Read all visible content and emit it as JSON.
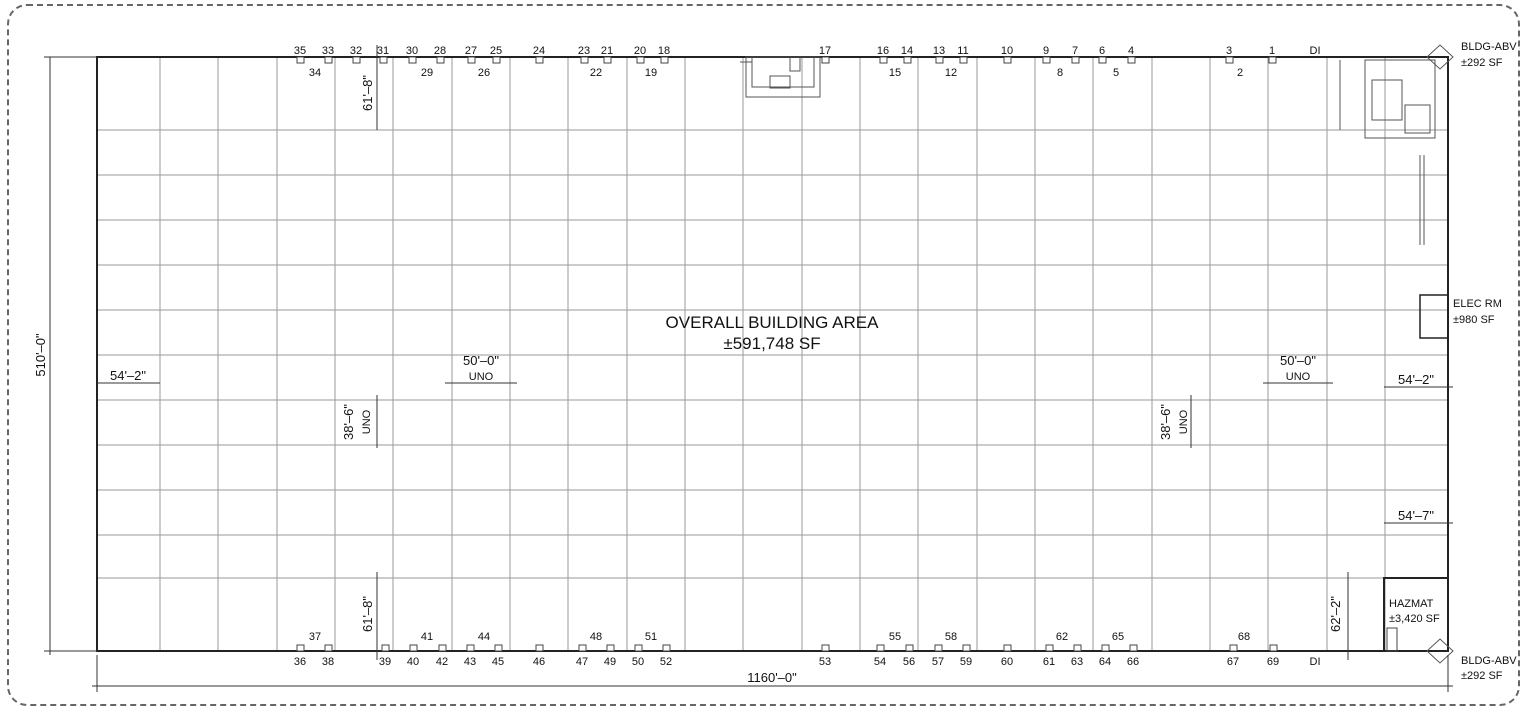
{
  "plan": {
    "area_label": "OVERALL BUILDING AREA",
    "area_value": "±591,748 SF",
    "overall_width": "1160'–0\"",
    "overall_height": "510'–0\"",
    "bays": {
      "left": "54'–2\"",
      "typ": "50'–0\"",
      "typ_right": "50'–0\"",
      "uno": "UNO",
      "right_a": "54'–2\"",
      "right_b": "54'–7\""
    },
    "rows": {
      "typ_left": "38'–6\"",
      "typ_right": "38'–6\"",
      "uno": "UNO",
      "top": "61'–8\"",
      "bottom": "61'–8\"",
      "bottom_right": "62'–2\""
    },
    "notes": {
      "bldg_abv_top": "BLDG-ABV",
      "bldg_abv_top_sf": "±292 SF",
      "bldg_abv_bottom": "BLDG-ABV",
      "bldg_abv_bottom_sf": "±292 SF",
      "elec_rm": "ELEC RM",
      "elec_rm_sf": "±980 SF",
      "hazmat": "HAZMAT",
      "hazmat_sf": "±3,420 SF",
      "di_top": "DI",
      "di_bottom": "DI"
    },
    "docks_top_upper": [
      "35",
      "33",
      "32",
      "31",
      "30",
      "28",
      "27",
      "25",
      "24",
      "23",
      "21",
      "20",
      "18",
      "17",
      "16",
      "14",
      "13",
      "11",
      "10",
      "9",
      "7",
      "6",
      "4",
      "3",
      "1"
    ],
    "docks_top_lower": [
      "34",
      "29",
      "26",
      "22",
      "19",
      "15",
      "12",
      "8",
      "5",
      "2"
    ],
    "docks_bottom_upper": [
      "37",
      "41",
      "44",
      "48",
      "51",
      "55",
      "58",
      "62",
      "65",
      "68"
    ],
    "docks_bottom_lower": [
      "36",
      "38",
      "39",
      "40",
      "42",
      "43",
      "45",
      "46",
      "47",
      "49",
      "50",
      "52",
      "53",
      "54",
      "56",
      "57",
      "59",
      "60",
      "61",
      "63",
      "64",
      "66",
      "67",
      "69"
    ]
  }
}
